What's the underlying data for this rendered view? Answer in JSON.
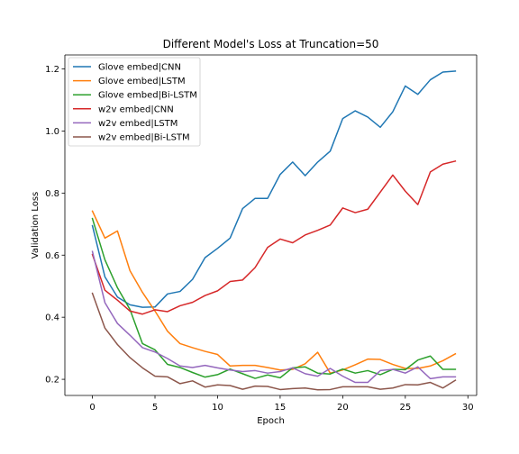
{
  "chart_data": {
    "type": "line",
    "title": "Different Model's Loss at Truncation=50",
    "xlabel": "Epoch",
    "ylabel": "Validation Loss",
    "xlim": [
      -2.2,
      30.7
    ],
    "ylim": [
      0.148,
      1.245
    ],
    "xticks": [
      0,
      5,
      10,
      15,
      20,
      25,
      30
    ],
    "yticks": [
      0.2,
      0.4,
      0.6,
      0.8,
      1.0,
      1.2
    ],
    "xtick_labels": [
      "0",
      "5",
      "10",
      "15",
      "20",
      "25",
      "30"
    ],
    "ytick_labels": [
      "0.2",
      "0.4",
      "0.6",
      "0.8",
      "1.0",
      "1.2"
    ],
    "grid": false,
    "legend_position": "top-left",
    "x": [
      0,
      1,
      2,
      3,
      4,
      5,
      6,
      7,
      8,
      9,
      10,
      11,
      12,
      13,
      14,
      15,
      16,
      17,
      18,
      19,
      20,
      21,
      22,
      23,
      24,
      25,
      26,
      27,
      28,
      29
    ],
    "series": [
      {
        "name": "Glove embed|CNN",
        "color": "#1f77b4",
        "values": [
          0.695,
          0.53,
          0.465,
          0.44,
          0.432,
          0.433,
          0.475,
          0.483,
          0.522,
          0.592,
          0.622,
          0.655,
          0.75,
          0.783,
          0.783,
          0.86,
          0.9,
          0.856,
          0.9,
          0.935,
          1.04,
          1.065,
          1.045,
          1.012,
          1.062,
          1.145,
          1.118,
          1.165,
          1.19,
          1.193
        ]
      },
      {
        "name": "Glove embed|LSTM",
        "color": "#ff7f0e",
        "values": [
          0.742,
          0.655,
          0.678,
          0.55,
          0.48,
          0.42,
          0.355,
          0.315,
          0.302,
          0.29,
          0.28,
          0.243,
          0.245,
          0.245,
          0.238,
          0.23,
          0.232,
          0.25,
          0.287,
          0.22,
          0.23,
          0.247,
          0.265,
          0.264,
          0.248,
          0.235,
          0.235,
          0.243,
          0.26,
          0.282
        ]
      },
      {
        "name": "Glove embed|Bi-LSTM",
        "color": "#2ca02c",
        "values": [
          0.718,
          0.585,
          0.495,
          0.425,
          0.315,
          0.295,
          0.248,
          0.238,
          0.222,
          0.207,
          0.215,
          0.233,
          0.218,
          0.203,
          0.214,
          0.205,
          0.237,
          0.24,
          0.22,
          0.217,
          0.233,
          0.22,
          0.228,
          0.215,
          0.232,
          0.231,
          0.262,
          0.275,
          0.232,
          0.232
        ]
      },
      {
        "name": "w2v embed|CNN",
        "color": "#d62728",
        "values": [
          0.602,
          0.487,
          0.455,
          0.42,
          0.41,
          0.424,
          0.418,
          0.437,
          0.448,
          0.47,
          0.485,
          0.515,
          0.52,
          0.56,
          0.625,
          0.652,
          0.64,
          0.665,
          0.68,
          0.697,
          0.752,
          0.737,
          0.748,
          0.803,
          0.858,
          0.806,
          0.763,
          0.868,
          0.893,
          0.903
        ]
      },
      {
        "name": "w2v embed|LSTM",
        "color": "#9467bd",
        "values": [
          0.612,
          0.447,
          0.38,
          0.342,
          0.302,
          0.288,
          0.267,
          0.243,
          0.238,
          0.245,
          0.237,
          0.23,
          0.225,
          0.228,
          0.22,
          0.225,
          0.237,
          0.218,
          0.21,
          0.235,
          0.21,
          0.19,
          0.19,
          0.228,
          0.232,
          0.22,
          0.24,
          0.202,
          0.208,
          0.208
        ]
      },
      {
        "name": "w2v embed|Bi-LSTM",
        "color": "#8c564b",
        "values": [
          0.477,
          0.365,
          0.312,
          0.27,
          0.237,
          0.21,
          0.208,
          0.186,
          0.195,
          0.175,
          0.182,
          0.18,
          0.168,
          0.178,
          0.177,
          0.167,
          0.17,
          0.172,
          0.166,
          0.167,
          0.176,
          0.176,
          0.176,
          0.168,
          0.172,
          0.183,
          0.182,
          0.19,
          0.172,
          0.197
        ]
      }
    ]
  }
}
